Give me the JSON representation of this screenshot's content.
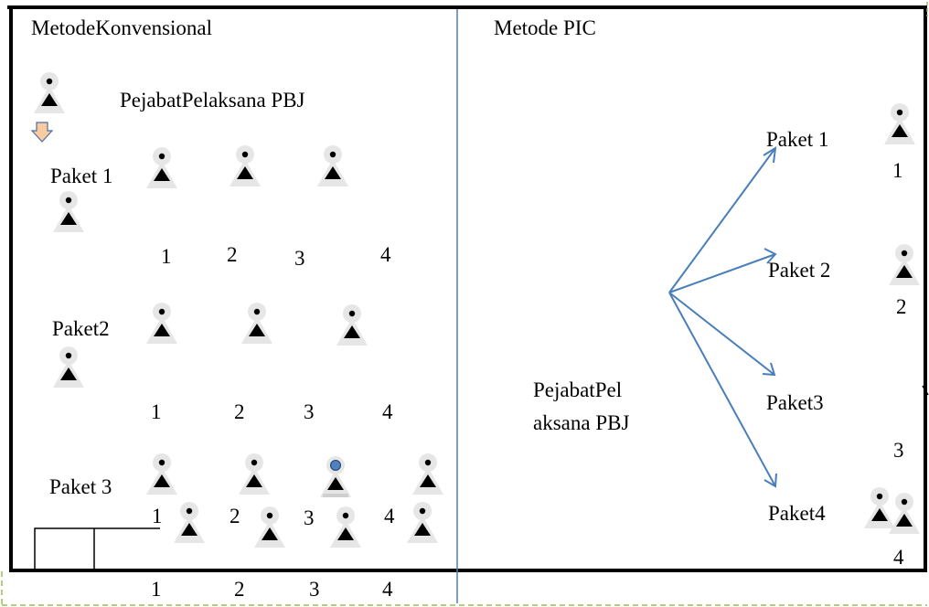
{
  "left_panel": {
    "title": "MetodeKonvensional",
    "official_label": "PejabatPelaksana PBJ",
    "paket1": {
      "label": "Paket 1",
      "numbers": [
        "1",
        "2",
        "3",
        "4"
      ]
    },
    "paket2": {
      "label": "Paket2",
      "numbers": [
        "1",
        "2",
        "3",
        "4"
      ]
    },
    "paket3": {
      "label": "Paket 3",
      "numbers": [
        "1",
        "2",
        "3",
        "4"
      ]
    },
    "bottom_numbers": [
      "1",
      "2",
      "3",
      "4"
    ]
  },
  "right_panel": {
    "title": "Metode PIC",
    "official_label_line1": "PejabatPel",
    "official_label_line2": "aksana PBJ",
    "pakets": [
      {
        "label": "Paket 1",
        "number": "1"
      },
      {
        "label": "Paket 2",
        "number": "2"
      },
      {
        "label": "Paket3",
        "number": "3"
      },
      {
        "label": "Paket4",
        "number": "4"
      }
    ]
  },
  "colors": {
    "divider": "#4a7ebb",
    "arrow": "#4a7ebb",
    "dashed_border": "#9bbb59",
    "person_halo": "#e6e6e6",
    "highlight_dot": "#4f81bd",
    "down_arrow_fill": "#f8cba0"
  }
}
